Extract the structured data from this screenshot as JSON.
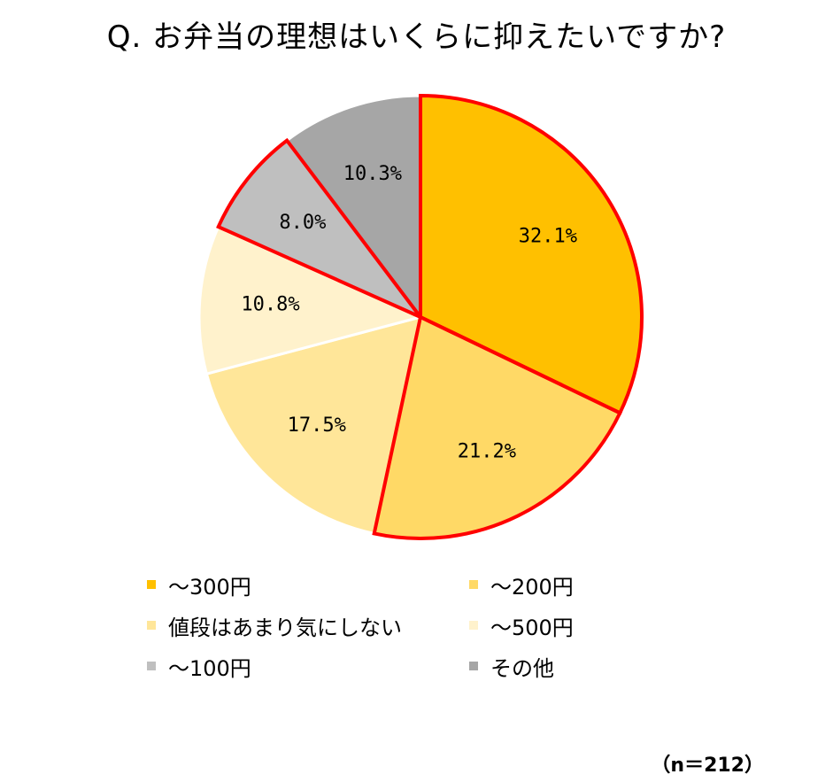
{
  "title": "Q. お弁当の理想はいくらに抑えたいですか?",
  "sample_size": "（n＝212）",
  "chart_data": {
    "type": "pie",
    "title": "Q. お弁当の理想はいくらに抑えたいですか?",
    "slices": [
      {
        "label": "～300円",
        "value": 32.1,
        "display": "32.1%",
        "color": "#FFC000",
        "highlighted": true
      },
      {
        "label": "～200円",
        "value": 21.2,
        "display": "21.2%",
        "color": "#FFD966",
        "highlighted": true
      },
      {
        "label": "値段はあまり気にしない",
        "value": 17.5,
        "display": "17.5%",
        "color": "#FFE699",
        "highlighted": false
      },
      {
        "label": "～500円",
        "value": 10.8,
        "display": "10.8%",
        "color": "#FFF2CC",
        "highlighted": false
      },
      {
        "label": "～100円",
        "value": 8.0,
        "display": "8.0%",
        "color": "#BFBFBF",
        "highlighted": true
      },
      {
        "label": "その他",
        "value": 10.3,
        "display": "10.3%",
        "color": "#A6A6A6",
        "highlighted": false
      }
    ],
    "highlight_color": "#FF0000",
    "legend_placement": "bottom"
  }
}
